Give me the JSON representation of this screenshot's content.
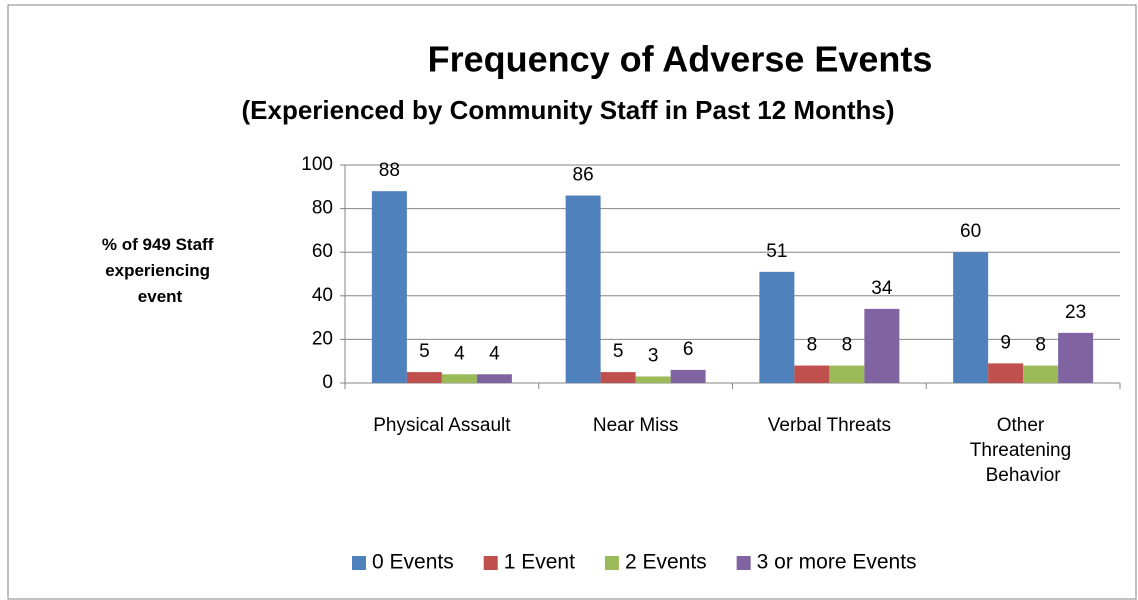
{
  "chart_data": {
    "type": "bar",
    "title": "Frequency of Adverse Events",
    "subtitle": "(Experienced by Community Staff in Past 12 Months)",
    "y_label": "% of 949 Staff experiencing event",
    "categories": [
      "Physical Assault",
      "Near Miss",
      "Verbal Threats",
      "Other Threatening Behavior"
    ],
    "series": [
      {
        "name": "0 Events",
        "color": "#4f81bd",
        "values": [
          88,
          86,
          51,
          60
        ]
      },
      {
        "name": "1 Event",
        "color": "#c0504d",
        "values": [
          5,
          5,
          8,
          9
        ]
      },
      {
        "name": "2 Events",
        "color": "#9bbb59",
        "values": [
          4,
          3,
          8,
          8
        ]
      },
      {
        "name": "3 or more Events",
        "color": "#8064a2",
        "values": [
          4,
          6,
          34,
          23
        ]
      }
    ],
    "ylim": [
      0,
      100
    ],
    "yticks": [
      0,
      20,
      40,
      60,
      80,
      100
    ],
    "grid": true,
    "legend": "bottom"
  }
}
